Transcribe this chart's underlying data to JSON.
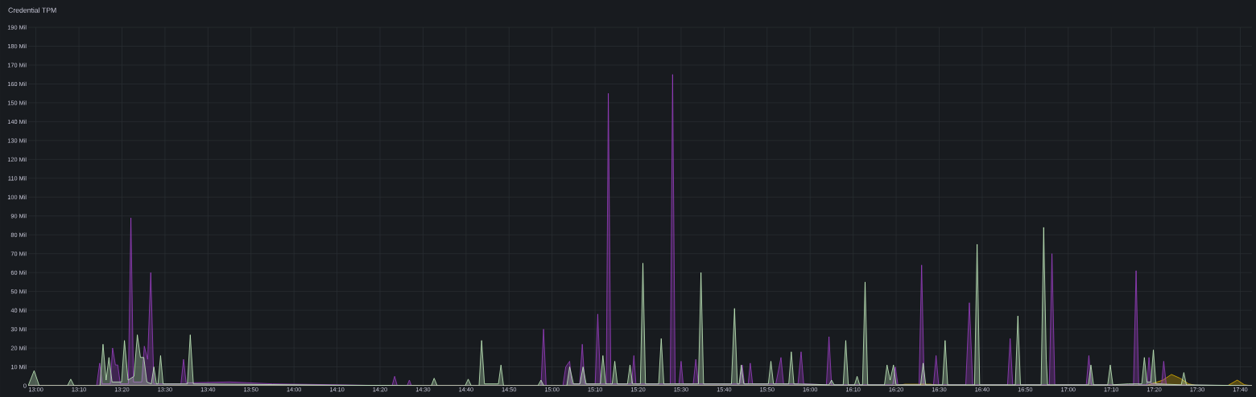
{
  "chart_data": {
    "type": "area",
    "title": "Credential TPM",
    "grid": true,
    "xlim": [
      12.97,
      17.712
    ],
    "ylim": [
      0,
      190
    ],
    "xticks": [
      {
        "value": 13,
        "label": "13:00"
      },
      {
        "value": 13.1667,
        "label": "13:10"
      },
      {
        "value": 13.3333,
        "label": "13:20"
      },
      {
        "value": 13.5,
        "label": "13:30"
      },
      {
        "value": 13.6667,
        "label": "13:40"
      },
      {
        "value": 13.8333,
        "label": "13:50"
      },
      {
        "value": 14,
        "label": "14:00"
      },
      {
        "value": 14.1667,
        "label": "14:10"
      },
      {
        "value": 14.3333,
        "label": "14:20"
      },
      {
        "value": 14.5,
        "label": "14:30"
      },
      {
        "value": 14.6667,
        "label": "14:40"
      },
      {
        "value": 14.8333,
        "label": "14:50"
      },
      {
        "value": 15,
        "label": "15:00"
      },
      {
        "value": 15.1667,
        "label": "15:10"
      },
      {
        "value": 15.3333,
        "label": "15:20"
      },
      {
        "value": 15.5,
        "label": "15:30"
      },
      {
        "value": 15.6667,
        "label": "15:40"
      },
      {
        "value": 15.8333,
        "label": "15:50"
      },
      {
        "value": 16,
        "label": "16:00"
      },
      {
        "value": 16.1667,
        "label": "16:10"
      },
      {
        "value": 16.3333,
        "label": "16:20"
      },
      {
        "value": 16.5,
        "label": "16:30"
      },
      {
        "value": 16.6667,
        "label": "16:40"
      },
      {
        "value": 16.8333,
        "label": "16:50"
      },
      {
        "value": 17,
        "label": "17:00"
      },
      {
        "value": 17.1667,
        "label": "17:10"
      },
      {
        "value": 17.3333,
        "label": "17:20"
      },
      {
        "value": 17.5,
        "label": "17:30"
      },
      {
        "value": 17.6667,
        "label": "17:40"
      }
    ],
    "yticks": [
      0,
      {
        "value": 10,
        "label": "10 Mil"
      },
      {
        "value": 20,
        "label": "20 Mil"
      },
      {
        "value": 30,
        "label": "30 Mil"
      },
      {
        "value": 40,
        "label": "40 Mil"
      },
      {
        "value": 50,
        "label": "50 Mil"
      },
      {
        "value": 60,
        "label": "60 Mil"
      },
      {
        "value": 70,
        "label": "70 Mil"
      },
      {
        "value": 80,
        "label": "80 Mil"
      },
      {
        "value": 90,
        "label": "90 Mil"
      },
      {
        "value": 100,
        "label": "100 Mil"
      },
      {
        "value": 110,
        "label": "110 Mil"
      },
      {
        "value": 120,
        "label": "120 Mil"
      },
      {
        "value": 130,
        "label": "130 Mil"
      },
      {
        "value": 140,
        "label": "140 Mil"
      },
      {
        "value": 150,
        "label": "150 Mil"
      },
      {
        "value": 160,
        "label": "160 Mil"
      },
      {
        "value": 170,
        "label": "170 Mil"
      },
      {
        "value": 180,
        "label": "180 Mil"
      },
      {
        "value": 190,
        "label": "190 Mil"
      }
    ],
    "series": [
      {
        "color": "#e0b400",
        "x": [
          12.97,
          16.333,
          16.367,
          16.467,
          16.5,
          17.3,
          17.367,
          17.4,
          17.433,
          17.467,
          17.5,
          17.617,
          17.655,
          17.683,
          17.712
        ],
        "values": [
          0,
          0,
          0.8,
          0.8,
          0,
          0,
          3,
          6,
          4,
          1,
          0,
          0,
          3,
          0.5,
          0
        ]
      },
      {
        "color": "#9a3fc4",
        "x": [
          12.97,
          13.235,
          13.247,
          13.257,
          13.288,
          13.297,
          13.308,
          13.317,
          13.327,
          13.358,
          13.368,
          13.378,
          13.41,
          13.42,
          13.433,
          13.445,
          13.457,
          13.562,
          13.572,
          13.582,
          13.75,
          13.917,
          14.167,
          14.38,
          14.39,
          14.4,
          14.438,
          14.447,
          14.455,
          14.957,
          14.967,
          14.977,
          15.042,
          15.053,
          15.068,
          15.077,
          15.107,
          15.117,
          15.127,
          15.167,
          15.177,
          15.188,
          15.21,
          15.218,
          15.228,
          15.308,
          15.317,
          15.325,
          15.458,
          15.467,
          15.477,
          15.492,
          15.5,
          15.508,
          15.547,
          15.557,
          15.567,
          15.727,
          15.737,
          15.745,
          15.76,
          15.768,
          15.777,
          15.867,
          15.887,
          15.897,
          15.953,
          15.965,
          15.975,
          16.063,
          16.073,
          16.083,
          16.32,
          16.33,
          16.34,
          16.422,
          16.432,
          16.442,
          16.478,
          16.488,
          16.498,
          16.603,
          16.617,
          16.63,
          16.765,
          16.775,
          16.785,
          16.927,
          16.937,
          16.948,
          17.07,
          17.08,
          17.09,
          17.253,
          17.263,
          17.273,
          17.305,
          17.313,
          17.322,
          17.362,
          17.37,
          17.38,
          17.712
        ],
        "values": [
          0,
          0,
          12,
          1,
          1,
          20,
          11,
          11,
          1,
          1,
          89,
          2,
          2,
          21,
          14,
          60,
          1,
          1,
          14,
          1.5,
          2,
          1,
          0.5,
          0,
          5,
          0,
          0,
          3,
          0,
          0,
          30,
          0,
          0,
          10,
          13,
          1,
          1,
          22,
          1,
          1,
          38,
          1,
          1,
          155,
          1,
          1,
          16,
          1,
          1,
          165,
          1,
          1,
          13,
          1,
          1,
          14,
          1,
          1,
          11,
          1,
          1,
          12,
          1,
          1,
          15,
          1,
          1,
          18,
          1,
          0.5,
          26,
          0.5,
          0.5,
          10,
          0.5,
          0.5,
          64,
          0.5,
          0.5,
          16,
          0.5,
          0.5,
          44,
          0.5,
          0.5,
          25,
          0.5,
          0.5,
          70,
          0.5,
          0.5,
          16,
          0.5,
          0.5,
          61,
          0.5,
          0.5,
          15,
          1,
          1,
          13,
          0.5,
          0
        ]
      },
      {
        "color": "#c8f2c2",
        "x": [
          12.97,
          12.993,
          13.013,
          13.122,
          13.135,
          13.148,
          13.248,
          13.26,
          13.272,
          13.283,
          13.295,
          13.332,
          13.343,
          13.357,
          13.38,
          13.393,
          13.405,
          13.418,
          13.43,
          13.447,
          13.457,
          13.467,
          13.473,
          13.483,
          13.493,
          13.587,
          13.598,
          13.61,
          14.167,
          14.532,
          14.543,
          14.555,
          14.663,
          14.675,
          14.687,
          14.717,
          14.727,
          14.738,
          14.792,
          14.802,
          14.812,
          14.945,
          14.957,
          14.968,
          15.057,
          15.068,
          15.083,
          15.108,
          15.12,
          15.132,
          15.187,
          15.197,
          15.208,
          15.233,
          15.243,
          15.253,
          15.292,
          15.302,
          15.312,
          15.342,
          15.352,
          15.362,
          15.413,
          15.423,
          15.433,
          15.567,
          15.577,
          15.587,
          15.695,
          15.707,
          15.718,
          15.725,
          15.733,
          15.743,
          15.838,
          15.848,
          15.858,
          15.917,
          15.927,
          15.937,
          16.073,
          16.083,
          16.093,
          16.128,
          16.138,
          16.148,
          16.172,
          16.182,
          16.192,
          16.203,
          16.213,
          16.223,
          16.288,
          16.298,
          16.31,
          16.323,
          16.333,
          16.428,
          16.438,
          16.448,
          16.513,
          16.523,
          16.533,
          16.637,
          16.647,
          16.657,
          16.795,
          16.805,
          16.815,
          16.895,
          16.905,
          16.915,
          16.92,
          17.078,
          17.088,
          17.098,
          17.153,
          17.163,
          17.173,
          17.233,
          17.285,
          17.295,
          17.305,
          17.32,
          17.33,
          17.34,
          17.438,
          17.448,
          17.458,
          17.712
        ],
        "values": [
          0,
          8,
          0,
          0,
          3.5,
          0,
          0,
          22,
          3,
          15,
          2,
          2,
          24,
          3,
          5,
          27,
          15,
          15,
          2,
          1,
          10,
          1,
          1,
          16,
          1,
          1,
          27,
          1,
          0.3,
          0,
          4,
          0,
          0,
          3.5,
          0,
          0,
          24,
          1,
          1,
          11,
          0,
          0,
          3,
          0,
          0,
          10,
          1,
          1,
          10,
          1,
          1,
          16,
          1,
          1,
          13,
          1,
          1,
          11,
          1,
          1,
          65,
          1,
          1,
          25,
          1,
          1,
          60,
          1,
          1,
          41,
          1,
          1,
          11,
          1,
          1,
          13,
          1,
          1,
          18,
          1,
          0.5,
          3,
          0.5,
          0.5,
          24,
          0.5,
          0.5,
          5,
          0.5,
          0.5,
          55,
          0.5,
          0.5,
          11,
          3,
          11,
          0.5,
          0.5,
          12,
          0.5,
          0.5,
          24,
          0.5,
          0.5,
          75,
          0.5,
          0.5,
          37,
          0.5,
          0.5,
          84,
          14,
          0.5,
          0.5,
          11,
          0.5,
          0.5,
          11,
          0.5,
          1,
          1,
          15,
          2,
          2,
          19,
          1,
          0.5,
          7,
          0.5,
          0
        ]
      }
    ]
  }
}
